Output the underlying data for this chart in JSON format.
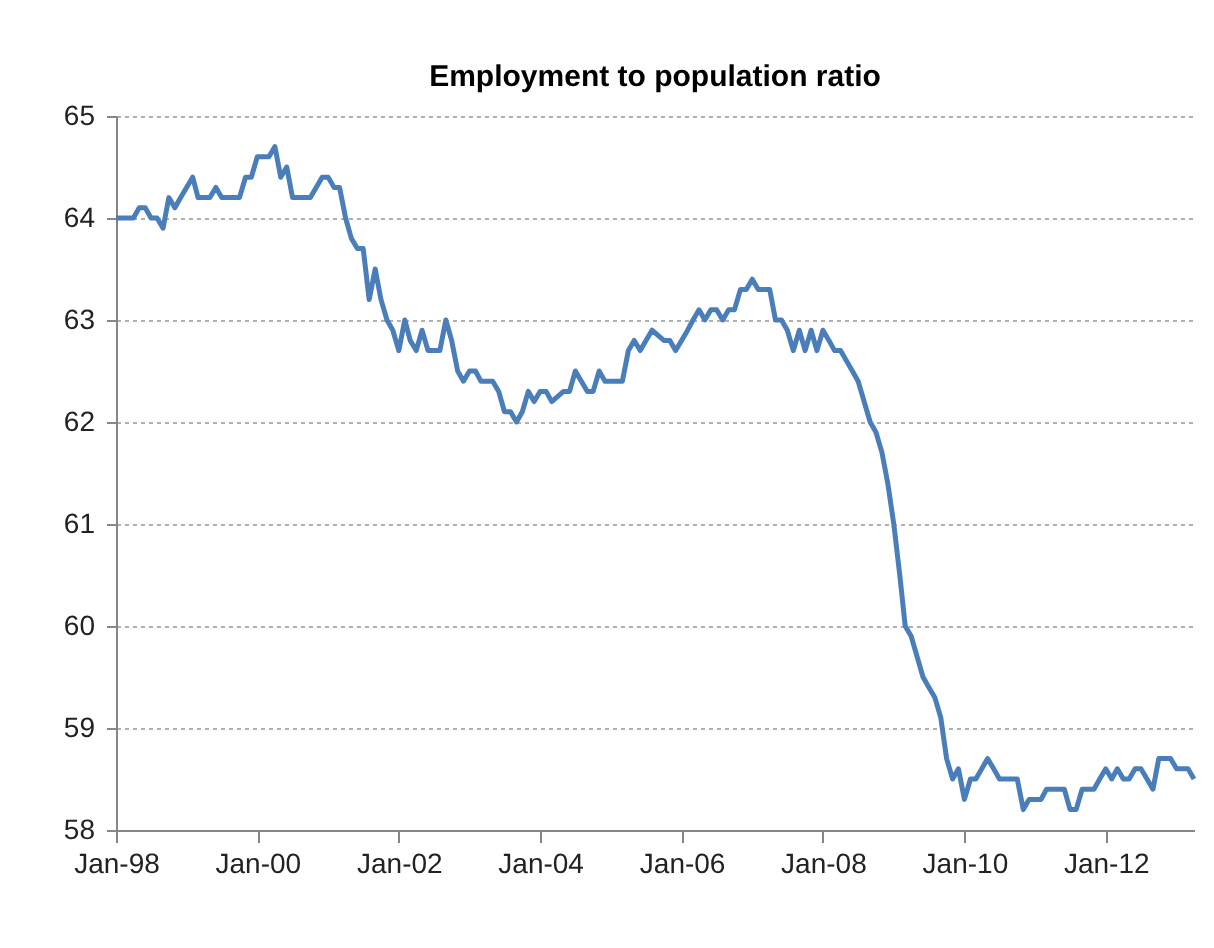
{
  "chart_data": {
    "type": "line",
    "title": "Employment to population ratio",
    "x": [
      "1998-01",
      "1998-04",
      "1998-05",
      "1998-06",
      "1998-07",
      "1998-08",
      "1998-09",
      "1998-10",
      "1998-11",
      "1998-12",
      "1999-02",
      "1999-03",
      "1999-05",
      "1999-06",
      "1999-07",
      "1999-10",
      "1999-11",
      "1999-12",
      "2000-01",
      "2000-03",
      "2000-04",
      "2000-05",
      "2000-06",
      "2000-07",
      "2000-10",
      "2000-12",
      "2001-01",
      "2001-02",
      "2001-03",
      "2001-04",
      "2001-05",
      "2001-06",
      "2001-07",
      "2001-08",
      "2001-09",
      "2001-10",
      "2001-11",
      "2001-12",
      "2002-01",
      "2002-02",
      "2002-03",
      "2002-04",
      "2002-05",
      "2002-06",
      "2002-08",
      "2002-09",
      "2002-10",
      "2002-11",
      "2002-12",
      "2003-01",
      "2003-02",
      "2003-03",
      "2003-05",
      "2003-06",
      "2003-07",
      "2003-08",
      "2003-09",
      "2003-10",
      "2003-11",
      "2003-12",
      "2004-01",
      "2004-02",
      "2004-03",
      "2004-05",
      "2004-06",
      "2004-07",
      "2004-08",
      "2004-09",
      "2004-10",
      "2004-11",
      "2004-12",
      "2005-03",
      "2005-04",
      "2005-05",
      "2005-06",
      "2005-08",
      "2005-10",
      "2005-11",
      "2005-12",
      "2006-01",
      "2006-02",
      "2006-03",
      "2006-04",
      "2006-05",
      "2006-06",
      "2006-07",
      "2006-08",
      "2006-09",
      "2006-10",
      "2006-11",
      "2006-12",
      "2007-01",
      "2007-02",
      "2007-03",
      "2007-04",
      "2007-05",
      "2007-06",
      "2007-07",
      "2007-08",
      "2007-09",
      "2007-10",
      "2007-11",
      "2007-12",
      "2008-01",
      "2008-02",
      "2008-03",
      "2008-04",
      "2008-06",
      "2008-07",
      "2008-09",
      "2008-10",
      "2008-11",
      "2008-12",
      "2009-01",
      "2009-02",
      "2009-03",
      "2009-04",
      "2009-06",
      "2009-07",
      "2009-08",
      "2009-09",
      "2009-10",
      "2009-11",
      "2009-12",
      "2010-01",
      "2010-02",
      "2010-03",
      "2010-05",
      "2010-06",
      "2010-07",
      "2010-10",
      "2010-11",
      "2010-12",
      "2011-02",
      "2011-03",
      "2011-06",
      "2011-07",
      "2011-08",
      "2011-09",
      "2011-11",
      "2011-12",
      "2012-01",
      "2012-02",
      "2012-03",
      "2012-04",
      "2012-05",
      "2012-06",
      "2012-07",
      "2012-08",
      "2012-09",
      "2012-10",
      "2012-12",
      "2013-01",
      "2013-03",
      "2013-04"
    ],
    "series": [
      {
        "color": "#4a7ebb",
        "values": [
          64.0,
          64.0,
          64.1,
          64.1,
          64.0,
          64.0,
          63.9,
          64.2,
          64.1,
          64.2,
          64.4,
          64.2,
          64.2,
          64.3,
          64.2,
          64.2,
          64.4,
          64.4,
          64.6,
          64.6,
          64.7,
          64.4,
          64.5,
          64.2,
          64.2,
          64.4,
          64.4,
          64.3,
          64.3,
          64.0,
          63.8,
          63.7,
          63.7,
          63.2,
          63.5,
          63.2,
          63.0,
          62.9,
          62.7,
          63.0,
          62.8,
          62.7,
          62.9,
          62.7,
          62.7,
          63.0,
          62.8,
          62.5,
          62.4,
          62.5,
          62.5,
          62.4,
          62.4,
          62.3,
          62.1,
          62.1,
          62.0,
          62.1,
          62.3,
          62.2,
          62.3,
          62.3,
          62.2,
          62.3,
          62.3,
          62.5,
          62.4,
          62.3,
          62.3,
          62.5,
          62.4,
          62.4,
          62.7,
          62.8,
          62.7,
          62.9,
          62.8,
          62.8,
          62.7,
          62.8,
          62.9,
          63.0,
          63.1,
          63.0,
          63.1,
          63.1,
          63.0,
          63.1,
          63.1,
          63.3,
          63.3,
          63.4,
          63.3,
          63.3,
          63.3,
          63.0,
          63.0,
          62.9,
          62.7,
          62.9,
          62.7,
          62.9,
          62.7,
          62.9,
          62.8,
          62.7,
          62.7,
          62.5,
          62.4,
          62.0,
          61.9,
          61.7,
          61.4,
          61.0,
          60.5,
          60.0,
          59.9,
          59.5,
          59.4,
          59.3,
          59.1,
          58.7,
          58.5,
          58.6,
          58.3,
          58.5,
          58.5,
          58.7,
          58.6,
          58.5,
          58.5,
          58.2,
          58.3,
          58.3,
          58.4,
          58.4,
          58.2,
          58.2,
          58.4,
          58.4,
          58.5,
          58.6,
          58.5,
          58.6,
          58.5,
          58.5,
          58.6,
          58.6,
          58.5,
          58.4,
          58.7,
          58.7,
          58.6,
          58.6,
          58.5
        ]
      }
    ],
    "xlim": [
      "1998-01",
      "2013-04"
    ],
    "xticks": [
      {
        "value": "1998-01",
        "label": "Jan-98"
      },
      {
        "value": "2000-01",
        "label": "Jan-00"
      },
      {
        "value": "2002-01",
        "label": "Jan-02"
      },
      {
        "value": "2004-01",
        "label": "Jan-04"
      },
      {
        "value": "2006-01",
        "label": "Jan-06"
      },
      {
        "value": "2008-01",
        "label": "Jan-08"
      },
      {
        "value": "2010-01",
        "label": "Jan-10"
      },
      {
        "value": "2012-01",
        "label": "Jan-12"
      }
    ],
    "ylim": [
      58,
      65
    ],
    "yticks": [
      58,
      59,
      60,
      61,
      62,
      63,
      64,
      65
    ],
    "grid": "y",
    "line_style": "solid",
    "marker": "none"
  }
}
